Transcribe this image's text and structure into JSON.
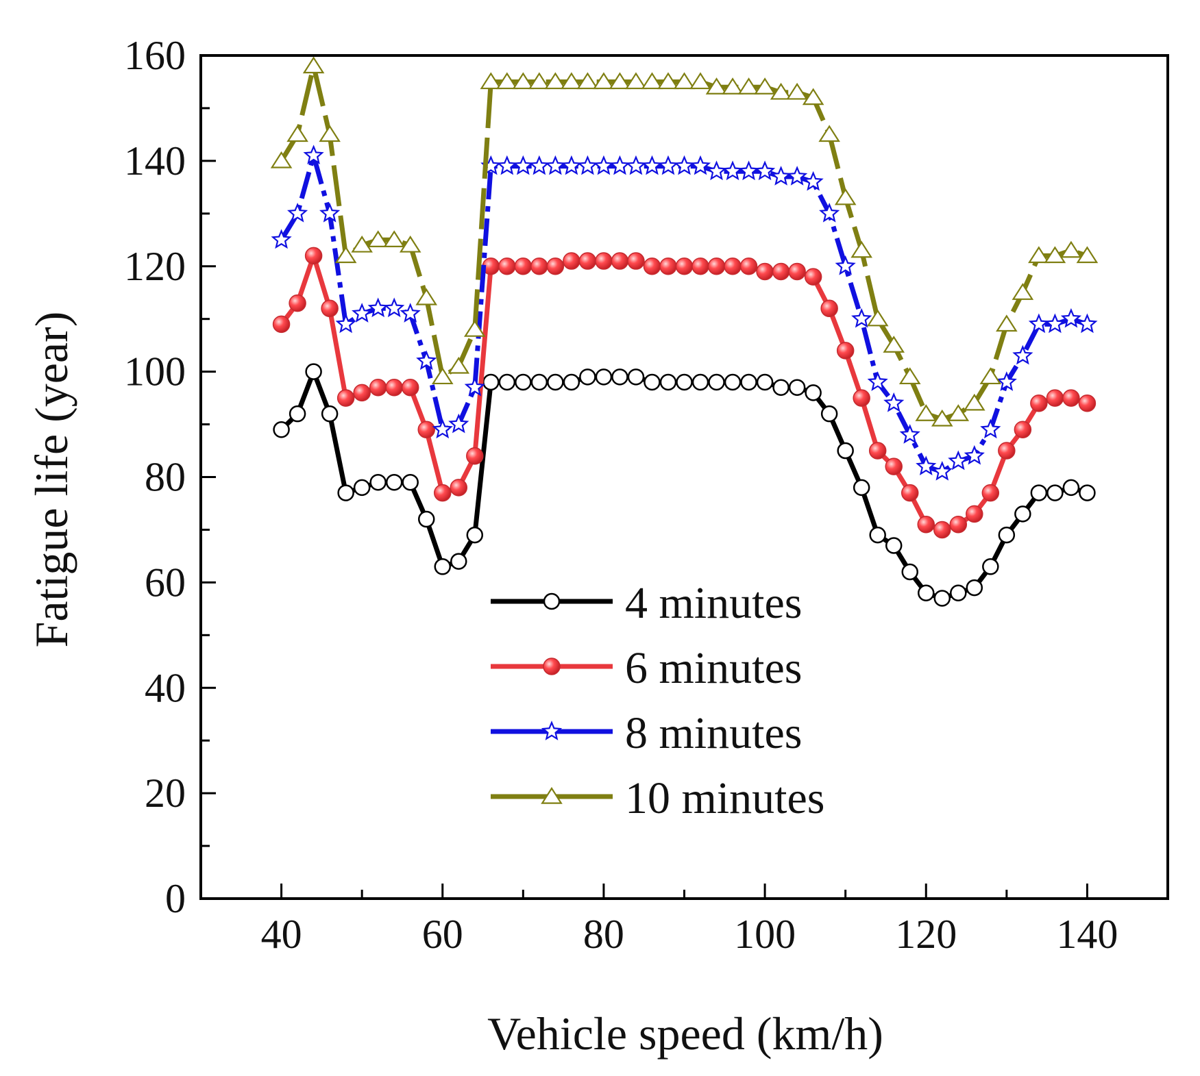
{
  "chart_data": {
    "type": "line",
    "title": "",
    "xlabel": "Vehicle speed (km/h)",
    "ylabel": "Fatigue life (year)",
    "xlim": [
      30,
      150
    ],
    "ylim": [
      0,
      160
    ],
    "xticks": [
      40,
      60,
      80,
      100,
      120,
      140
    ],
    "yticks": [
      0,
      20,
      40,
      60,
      80,
      100,
      120,
      140,
      160
    ],
    "grid": false,
    "legend_position": "bottom-center",
    "x": [
      40,
      42,
      44,
      46,
      48,
      50,
      52,
      54,
      56,
      58,
      60,
      62,
      64,
      66,
      68,
      70,
      72,
      74,
      76,
      78,
      80,
      82,
      84,
      86,
      88,
      90,
      92,
      94,
      96,
      98,
      100,
      102,
      104,
      106,
      108,
      110,
      112,
      114,
      116,
      118,
      120,
      122,
      124,
      126,
      128,
      130,
      132,
      134,
      136,
      138,
      140
    ],
    "series": [
      {
        "name": "4 minutes",
        "color": "#000000",
        "marker": "open-circle",
        "dash": "solid",
        "values": [
          89,
          92,
          100,
          92,
          77,
          78,
          79,
          79,
          79,
          72,
          63,
          64,
          69,
          98,
          98,
          98,
          98,
          98,
          98,
          99,
          99,
          99,
          99,
          98,
          98,
          98,
          98,
          98,
          98,
          98,
          98,
          97,
          97,
          96,
          92,
          85,
          78,
          69,
          67,
          62,
          58,
          57,
          58,
          59,
          63,
          69,
          73,
          77,
          77,
          78,
          77
        ]
      },
      {
        "name": "6 minutes",
        "color": "#e8383d",
        "marker": "filled-sphere",
        "dash": "solid",
        "values": [
          109,
          113,
          122,
          112,
          95,
          96,
          97,
          97,
          97,
          89,
          77,
          78,
          84,
          120,
          120,
          120,
          120,
          120,
          121,
          121,
          121,
          121,
          121,
          120,
          120,
          120,
          120,
          120,
          120,
          120,
          119,
          119,
          119,
          118,
          112,
          104,
          95,
          85,
          82,
          77,
          71,
          70,
          71,
          73,
          77,
          85,
          89,
          94,
          95,
          95,
          94
        ]
      },
      {
        "name": "8 minutes",
        "color": "#1010e0",
        "marker": "open-star",
        "dash": "dashdot",
        "values": [
          125,
          130,
          141,
          130,
          109,
          111,
          112,
          112,
          111,
          102,
          89,
          90,
          97,
          139,
          139,
          139,
          139,
          139,
          139,
          139,
          139,
          139,
          139,
          139,
          139,
          139,
          139,
          138,
          138,
          138,
          138,
          137,
          137,
          136,
          130,
          120,
          110,
          98,
          94,
          88,
          82,
          81,
          83,
          84,
          89,
          98,
          103,
          109,
          109,
          110,
          109
        ]
      },
      {
        "name": "10 minutes",
        "color": "#7f7f12",
        "marker": "open-triangle",
        "dash": "longdash",
        "values": [
          140,
          145,
          158,
          145,
          122,
          124,
          125,
          125,
          124,
          114,
          99,
          101,
          108,
          155,
          155,
          155,
          155,
          155,
          155,
          155,
          155,
          155,
          155,
          155,
          155,
          155,
          155,
          154,
          154,
          154,
          154,
          153,
          153,
          152,
          145,
          133,
          123,
          110,
          105,
          99,
          92,
          91,
          92,
          94,
          99,
          109,
          115,
          122,
          122,
          123,
          122
        ]
      }
    ]
  }
}
